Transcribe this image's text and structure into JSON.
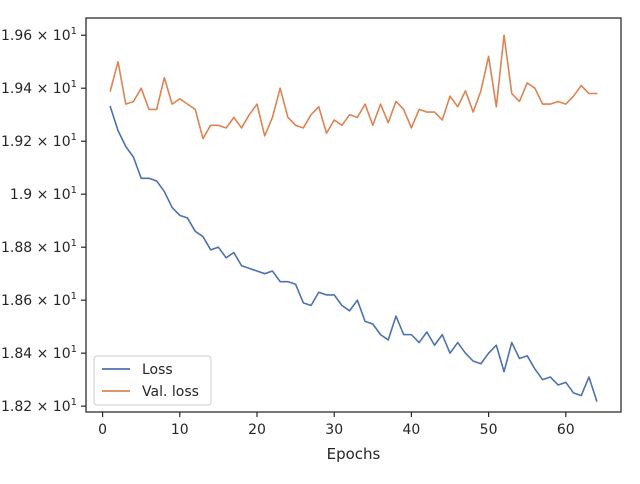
{
  "chart_data": {
    "type": "line",
    "xlabel": "Epochs",
    "ylabel": "",
    "title": "",
    "xlim": [
      -2.15,
      67.15
    ],
    "ylim": [
      18.178,
      19.665
    ],
    "x_ticks": [
      0,
      10,
      20,
      30,
      40,
      50,
      60
    ],
    "y_ticks": [
      {
        "value": 18.2,
        "mantissa": "1.82",
        "base": "10",
        "exponent": "1"
      },
      {
        "value": 18.4,
        "mantissa": "1.84",
        "base": "10",
        "exponent": "1"
      },
      {
        "value": 18.6,
        "mantissa": "1.86",
        "base": "10",
        "exponent": "1"
      },
      {
        "value": 18.8,
        "mantissa": "1.88",
        "base": "10",
        "exponent": "1"
      },
      {
        "value": 19.0,
        "mantissa": "1.9",
        "base": "10",
        "exponent": "1"
      },
      {
        "value": 19.2,
        "mantissa": "1.92",
        "base": "10",
        "exponent": "1"
      },
      {
        "value": 19.4,
        "mantissa": "1.94",
        "base": "10",
        "exponent": "1"
      },
      {
        "value": 19.6,
        "mantissa": "1.96",
        "base": "10",
        "exponent": "1"
      }
    ],
    "grid": false,
    "legend_position": "lower-left",
    "x": [
      1,
      2,
      3,
      4,
      5,
      6,
      7,
      8,
      9,
      10,
      11,
      12,
      13,
      14,
      15,
      16,
      17,
      18,
      19,
      20,
      21,
      22,
      23,
      24,
      25,
      26,
      27,
      28,
      29,
      30,
      31,
      32,
      33,
      34,
      35,
      36,
      37,
      38,
      39,
      40,
      41,
      42,
      43,
      44,
      45,
      46,
      47,
      48,
      49,
      50,
      51,
      52,
      53,
      54,
      55,
      56,
      57,
      58,
      59,
      60,
      61,
      62,
      63,
      64
    ],
    "series": [
      {
        "name": "Loss",
        "color": "#4c72b0",
        "values": [
          19.33,
          19.24,
          19.18,
          19.14,
          19.06,
          19.06,
          19.05,
          19.01,
          18.95,
          18.92,
          18.91,
          18.86,
          18.84,
          18.79,
          18.8,
          18.76,
          18.78,
          18.73,
          18.72,
          18.71,
          18.7,
          18.71,
          18.67,
          18.67,
          18.66,
          18.59,
          18.58,
          18.63,
          18.62,
          18.62,
          18.58,
          18.56,
          18.6,
          18.52,
          18.51,
          18.47,
          18.45,
          18.54,
          18.47,
          18.47,
          18.44,
          18.48,
          18.43,
          18.47,
          18.4,
          18.44,
          18.4,
          18.37,
          18.36,
          18.4,
          18.43,
          18.33,
          18.44,
          18.38,
          18.39,
          18.34,
          18.3,
          18.31,
          18.28,
          18.29,
          18.25,
          18.24,
          18.31,
          18.22
        ]
      },
      {
        "name": "Val. loss",
        "color": "#dd8452",
        "values": [
          19.39,
          19.5,
          19.34,
          19.35,
          19.4,
          19.32,
          19.32,
          19.44,
          19.34,
          19.36,
          19.34,
          19.32,
          19.21,
          19.26,
          19.26,
          19.25,
          19.29,
          19.25,
          19.3,
          19.34,
          19.22,
          19.29,
          19.4,
          19.29,
          19.26,
          19.25,
          19.3,
          19.33,
          19.23,
          19.28,
          19.26,
          19.3,
          19.29,
          19.34,
          19.26,
          19.34,
          19.27,
          19.35,
          19.32,
          19.25,
          19.32,
          19.31,
          19.31,
          19.28,
          19.37,
          19.33,
          19.39,
          19.31,
          19.39,
          19.52,
          19.33,
          19.6,
          19.38,
          19.35,
          19.42,
          19.4,
          19.34,
          19.34,
          19.35,
          19.34,
          19.37,
          19.41,
          19.38,
          19.38
        ]
      }
    ]
  }
}
